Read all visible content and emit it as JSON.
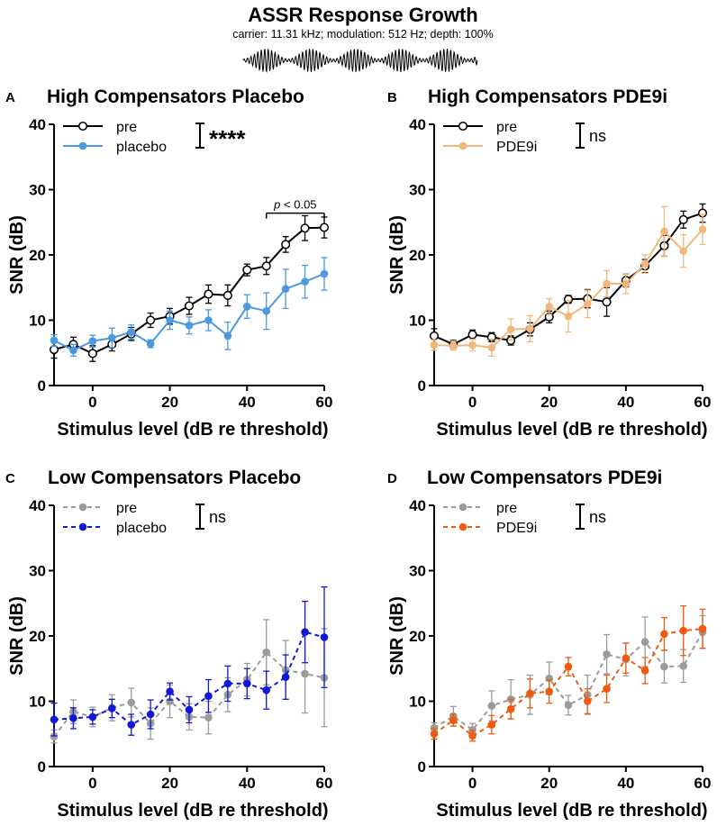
{
  "figure": {
    "title": "ASSR Response Growth",
    "subtitle": "carrier: 11.31 kHz; modulation: 512 Hz; depth: 100%",
    "waveform": "modulated-carrier-waveform"
  },
  "colors": {
    "black": "#000000",
    "pre_gray": "#9b9b9b",
    "placebo_high": "#4a98e0",
    "pde9i_high": "#f2b77c",
    "placebo_low": "#1218d6",
    "pde9i_low": "#ef5a10"
  },
  "chart_data": [
    {
      "type": "line",
      "panel": "A",
      "title": "High Compensators Placebo",
      "xlabel": "Stimulus level (dB re threshold)",
      "ylabel": "SNR (dB)",
      "xlim": [
        -10,
        60
      ],
      "ylim": [
        0,
        40
      ],
      "xticks": [
        0,
        20,
        40,
        60
      ],
      "yticks": [
        0,
        10,
        20,
        30,
        40
      ],
      "x": [
        -10,
        -5,
        0,
        5,
        10,
        15,
        20,
        25,
        30,
        35,
        40,
        45,
        50,
        55,
        60
      ],
      "series": [
        {
          "name": "pre",
          "style": "solid",
          "marker": "open",
          "color": "#000000",
          "values": [
            5.5,
            6.3,
            4.9,
            6.3,
            7.9,
            10.0,
            10.6,
            12.2,
            14.0,
            13.8,
            17.7,
            18.3,
            21.6,
            24.1,
            24.2
          ],
          "errors": [
            1.3,
            1.1,
            1.2,
            1.0,
            1.0,
            1.1,
            1.2,
            1.3,
            1.4,
            1.6,
            0.9,
            1.3,
            1.2,
            1.9,
            1.6
          ]
        },
        {
          "name": "placebo",
          "style": "solid",
          "marker": "filled",
          "color": "#4a98e0",
          "values": [
            6.9,
            5.4,
            6.8,
            7.3,
            8.2,
            6.4,
            10.0,
            9.2,
            10.0,
            7.6,
            12.1,
            11.4,
            14.8,
            15.9,
            17.1
          ],
          "errors": [
            0.9,
            0.9,
            0.9,
            1.5,
            1.1,
            0.6,
            1.4,
            1.3,
            1.6,
            2.1,
            1.8,
            2.8,
            3.0,
            2.5,
            2.5
          ]
        }
      ],
      "legend_position": "top-left",
      "significance": "****",
      "annotation": {
        "text_italic": "p",
        "text": " < 0.05",
        "x_from": 45,
        "x_to": 60
      }
    },
    {
      "type": "line",
      "panel": "B",
      "title": "High Compensators PDE9i",
      "xlabel": "Stimulus level (dB re threshold)",
      "ylabel": "SNR (dB)",
      "xlim": [
        -10,
        60
      ],
      "ylim": [
        0,
        40
      ],
      "xticks": [
        0,
        20,
        40,
        60
      ],
      "yticks": [
        0,
        10,
        20,
        30,
        40
      ],
      "x": [
        -10,
        -5,
        0,
        5,
        10,
        15,
        20,
        25,
        30,
        35,
        40,
        45,
        50,
        55,
        60
      ],
      "series": [
        {
          "name": "pre",
          "style": "solid",
          "marker": "open",
          "color": "#000000",
          "values": [
            7.6,
            6.3,
            7.8,
            7.4,
            6.9,
            8.6,
            10.5,
            13.2,
            13.3,
            12.8,
            16.1,
            18.3,
            21.4,
            25.4,
            26.4
          ],
          "errors": [
            1.1,
            0.6,
            0.7,
            0.7,
            0.7,
            1.0,
            0.9,
            0.6,
            1.4,
            2.2,
            1.0,
            1.0,
            1.6,
            1.3,
            1.4
          ]
        },
        {
          "name": "PDE9i",
          "style": "solid",
          "marker": "filled",
          "color": "#f2b77c",
          "values": [
            6.2,
            6.1,
            6.2,
            5.8,
            8.6,
            8.7,
            12.1,
            10.6,
            12.5,
            15.6,
            15.6,
            18.6,
            23.6,
            20.6,
            23.9
          ],
          "errors": [
            0.8,
            0.7,
            0.9,
            1.3,
            1.6,
            2.0,
            1.2,
            2.4,
            2.1,
            2.0,
            1.5,
            1.4,
            3.8,
            2.5,
            2.3
          ]
        }
      ],
      "legend_position": "top-left",
      "significance": "ns"
    },
    {
      "type": "line",
      "panel": "C",
      "title": "Low Compensators Placebo",
      "xlabel": "Stimulus level (dB re threshold)",
      "ylabel": "SNR (dB)",
      "xlim": [
        -10,
        60
      ],
      "ylim": [
        0,
        40
      ],
      "xticks": [
        0,
        20,
        40,
        60
      ],
      "yticks": [
        0,
        10,
        20,
        30,
        40
      ],
      "x": [
        -10,
        -5,
        0,
        5,
        10,
        15,
        20,
        25,
        30,
        35,
        40,
        45,
        50,
        55,
        60
      ],
      "series": [
        {
          "name": "pre",
          "style": "dashed",
          "marker": "filled",
          "color": "#9b9b9b",
          "values": [
            4.6,
            8.4,
            7.6,
            9.0,
            9.8,
            6.6,
            10.0,
            7.6,
            7.5,
            11.0,
            13.3,
            17.5,
            14.8,
            14.2,
            13.6
          ],
          "errors": [
            1.0,
            1.8,
            1.5,
            2.0,
            2.2,
            2.4,
            2.5,
            2.0,
            2.5,
            2.6,
            2.5,
            5.0,
            4.5,
            6.0,
            7.5
          ]
        },
        {
          "name": "placebo",
          "style": "dashed",
          "marker": "filled",
          "color": "#1218d6",
          "values": [
            7.2,
            7.4,
            7.6,
            8.9,
            6.4,
            8.0,
            11.5,
            8.7,
            10.8,
            12.7,
            12.7,
            11.7,
            13.7,
            20.6,
            19.8
          ],
          "errors": [
            2.5,
            1.6,
            1.1,
            1.4,
            1.6,
            2.2,
            1.3,
            2.0,
            2.5,
            2.7,
            2.3,
            2.9,
            3.4,
            4.7,
            7.7
          ]
        }
      ],
      "legend_position": "top-left",
      "significance": "ns"
    },
    {
      "type": "line",
      "panel": "D",
      "title": "Low Compensators PDE9i",
      "xlabel": "Stimulus level (dB re threshold)",
      "ylabel": "SNR (dB)",
      "xlim": [
        -10,
        60
      ],
      "ylim": [
        0,
        40
      ],
      "xticks": [
        0,
        20,
        40,
        60
      ],
      "yticks": [
        0,
        10,
        20,
        30,
        40
      ],
      "x": [
        -10,
        -5,
        0,
        5,
        10,
        15,
        20,
        25,
        30,
        35,
        40,
        45,
        50,
        55,
        60
      ],
      "series": [
        {
          "name": "pre",
          "style": "dashed",
          "marker": "filled",
          "color": "#9b9b9b",
          "values": [
            5.9,
            7.7,
            5.6,
            9.3,
            10.3,
            11.0,
            13.5,
            9.4,
            11.0,
            17.2,
            16.4,
            19.1,
            15.3,
            15.4,
            20.6
          ],
          "errors": [
            0.8,
            1.5,
            1.0,
            2.3,
            3.0,
            3.0,
            2.5,
            1.5,
            3.0,
            3.0,
            2.5,
            3.8,
            2.5,
            2.5,
            2.5
          ]
        },
        {
          "name": "PDE9i",
          "style": "dashed",
          "marker": "filled",
          "color": "#ef5a10",
          "values": [
            5.0,
            7.1,
            4.7,
            6.4,
            8.8,
            11.2,
            11.5,
            15.3,
            10.0,
            11.9,
            16.6,
            14.7,
            20.3,
            20.8,
            21.1
          ],
          "errors": [
            0.8,
            0.9,
            0.8,
            1.4,
            1.5,
            2.2,
            1.8,
            1.4,
            1.9,
            2.1,
            2.3,
            2.0,
            2.5,
            3.8,
            3.0
          ]
        }
      ],
      "legend_position": "top-left",
      "significance": "ns"
    }
  ]
}
